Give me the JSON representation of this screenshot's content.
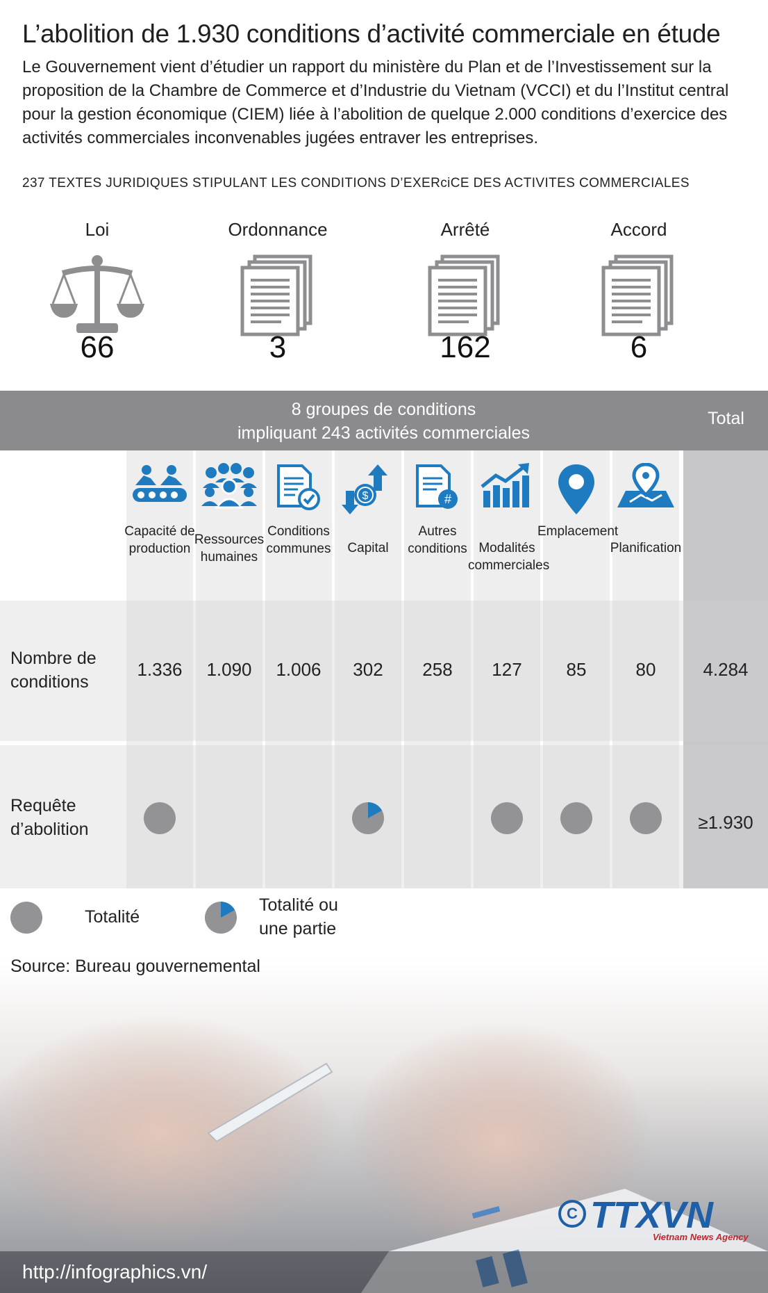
{
  "title": "L’abolition de 1.930 conditions d’activité commerciale en étude",
  "intro": "Le Gouvernement vient d’étudier un rapport du ministère du Plan et de l’Investissement sur la proposition de la Chambre de Commerce et d’Industrie du Vietnam (VCCI) et du l’Institut central pour la gestion économique (CIEM) liée à l’abolition de quelque 2.000 conditions d’exercice des activités commerciales inconvenables jugées entraver les entreprises.",
  "subhead": "237 TEXTES JURIDIQUES STIPULANT LES CONDITIONS D’EXERciCE DES ACTIVITES COMMERCIALES",
  "legal_texts": [
    {
      "label": "Loi",
      "count": "66",
      "icon": "scales-icon"
    },
    {
      "label": "Ordonnance",
      "count": "3",
      "icon": "documents-icon"
    },
    {
      "label": "Arrêté",
      "count": "162",
      "icon": "documents-icon"
    },
    {
      "label": "Accord",
      "count": "6",
      "icon": "documents-icon"
    }
  ],
  "table": {
    "header_line1": "8 groupes de conditions",
    "header_line2": "impliquant 243 activités commerciales",
    "header_total": "Total",
    "row1_label_line1": "Nombre de",
    "row1_label_line2": "conditions",
    "row2_label_line1": "Requête",
    "row2_label_line2": "d’abolition",
    "categories": [
      {
        "name": "Capacité de production",
        "count": "1.336",
        "abolition": "full",
        "icon": "conveyor-icon"
      },
      {
        "name": "Ressources humaines",
        "count": "1.090",
        "abolition": "none",
        "icon": "people-icon"
      },
      {
        "name": "Conditions communes",
        "count": "1.006",
        "abolition": "none",
        "icon": "document-check-icon"
      },
      {
        "name": "Capital",
        "count": "302",
        "abolition": "partial",
        "icon": "money-arrows-icon"
      },
      {
        "name": "Autres conditions",
        "count": "258",
        "abolition": "none",
        "icon": "document-hash-icon"
      },
      {
        "name": "Modalités commerciales",
        "count": "127",
        "abolition": "full",
        "icon": "chart-up-icon"
      },
      {
        "name": "Emplacement",
        "count": "85",
        "abolition": "full",
        "icon": "map-pin-icon"
      },
      {
        "name": "Planification",
        "count": "80",
        "abolition": "full",
        "icon": "map-location-icon"
      }
    ],
    "total_count": "4.284",
    "total_abolition": "≥1.930"
  },
  "legend": {
    "full": "Totalité",
    "partial_line1": "Totalité ou",
    "partial_line2": "une partie"
  },
  "source": "Source:  Bureau gouvernemental",
  "url": "http://infographics.vn/",
  "logo_text": "TTXVN",
  "logo_sub": "Vietnam News Agency",
  "colors": {
    "accent": "#1f7bbf",
    "grey_dot": "#939396",
    "header_bg": "#8b8b8d",
    "icon_grey": "#8e8e90"
  }
}
